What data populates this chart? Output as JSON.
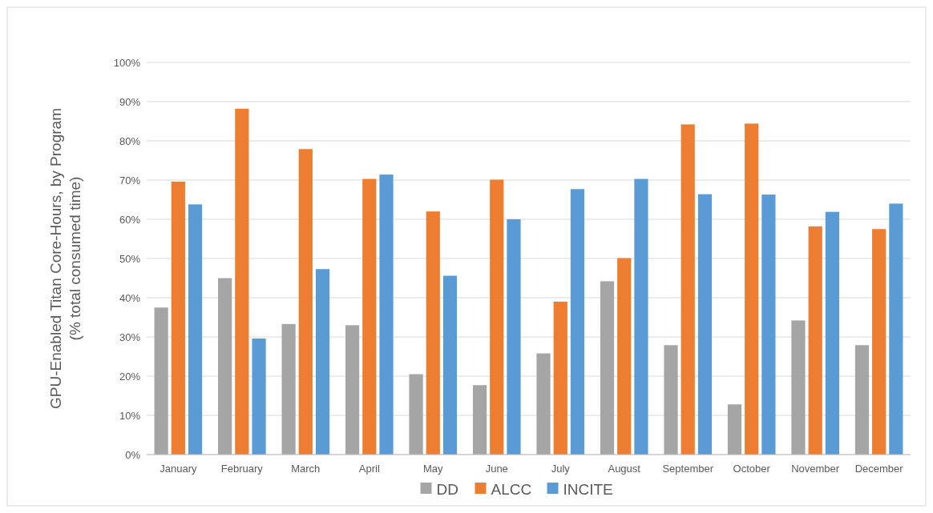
{
  "chart_data": {
    "type": "bar",
    "ylabel": "GPU-Enabled Titan Core-Hours, by Program\n(% total consumed time)",
    "categories": [
      "January",
      "February",
      "March",
      "April",
      "May",
      "June",
      "July",
      "August",
      "September",
      "October",
      "November",
      "December"
    ],
    "series": [
      {
        "name": "DD",
        "color": "#a5a5a5",
        "values": [
          37.5,
          45,
          33.3,
          33,
          20.5,
          17.7,
          25.8,
          44.2,
          27.9,
          12.8,
          34.2,
          27.9
        ]
      },
      {
        "name": "ALCC",
        "color": "#ed7d31",
        "values": [
          69.6,
          88.2,
          77.9,
          70.3,
          62,
          70.1,
          39,
          50.1,
          84.2,
          84.4,
          58.2,
          57.5
        ]
      },
      {
        "name": "INCITE",
        "color": "#5b9bd5",
        "values": [
          63.8,
          29.6,
          47.3,
          71.4,
          45.6,
          60,
          67.7,
          70.3,
          66.4,
          66.3,
          61.9,
          64
        ]
      }
    ],
    "ylim": [
      0,
      100
    ],
    "yticks": [
      {
        "value": 0,
        "label": "0%"
      },
      {
        "value": 10,
        "label": "10%"
      },
      {
        "value": 20,
        "label": "20%"
      },
      {
        "value": 30,
        "label": "30%"
      },
      {
        "value": 40,
        "label": "40%"
      },
      {
        "value": 50,
        "label": "50%"
      },
      {
        "value": 60,
        "label": "60%"
      },
      {
        "value": 70,
        "label": "70%"
      },
      {
        "value": 80,
        "label": "80%"
      },
      {
        "value": 90,
        "label": "90%"
      },
      {
        "value": 100,
        "label": "100%"
      }
    ],
    "grid": "y",
    "legend": "bottom"
  }
}
